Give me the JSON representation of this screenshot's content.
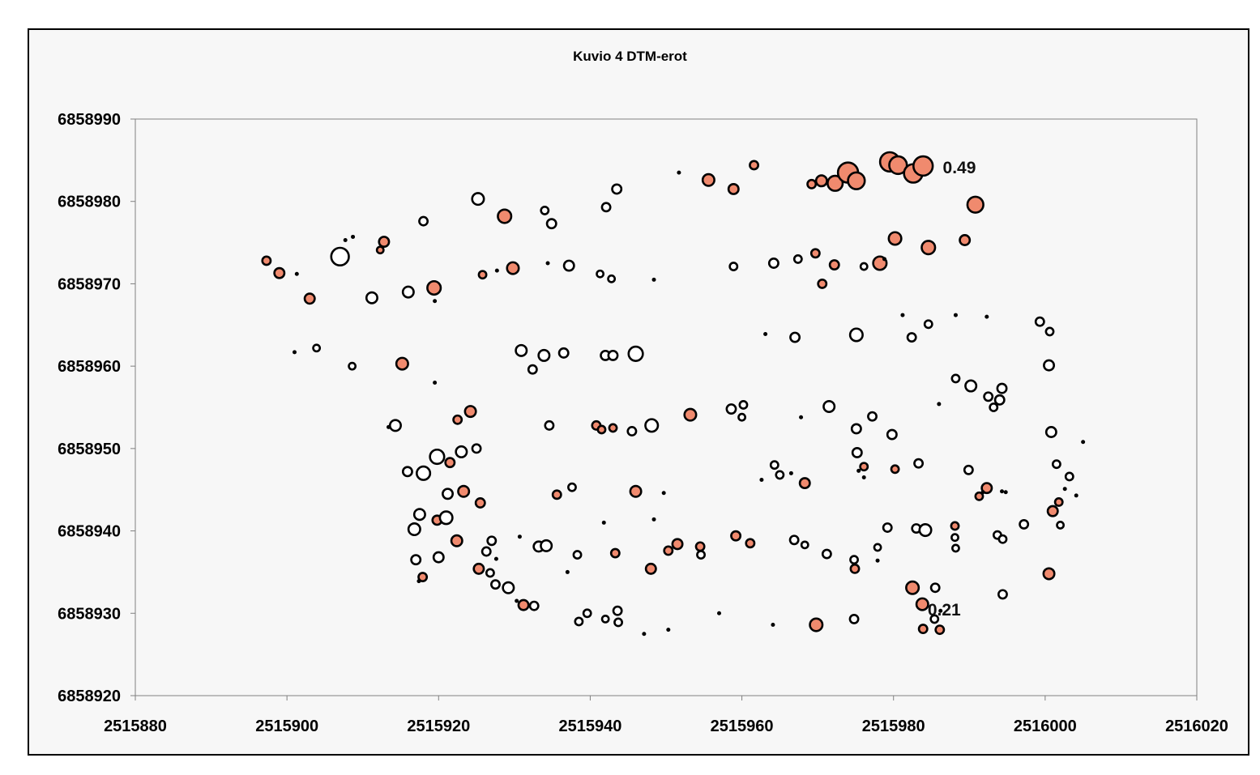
{
  "chart_data": {
    "type": "scatter",
    "title": "Kuvio 4 DTM-erot",
    "xlabel": "",
    "ylabel": "",
    "xlim": [
      2515880,
      2516020
    ],
    "ylim": [
      6858920,
      6858990
    ],
    "x_ticks": [
      "2515880",
      "2515900",
      "2515920",
      "2515940",
      "2515960",
      "2515980",
      "2516000",
      "2516020"
    ],
    "y_ticks": [
      "6858920",
      "6858930",
      "6858940",
      "6858950",
      "6858960",
      "6858970",
      "6858980",
      "6858990"
    ],
    "grid": false,
    "legend": "none",
    "annotations": [
      {
        "text": "0.49",
        "x": 2515986.5,
        "y": 6858984.1
      },
      {
        "text": "0.21",
        "x": 2515984.5,
        "y": 6858930.4
      }
    ],
    "series": [
      {
        "color": "#f08a6e",
        "marker": "filled circle, size ~ positive difference",
        "points": [
          [
            2515897.3,
            6858972.8,
            0.07
          ],
          [
            2515899.0,
            6858971.3,
            0.09
          ],
          [
            2515903.0,
            6858968.2,
            0.09
          ],
          [
            2515912.8,
            6858975.1,
            0.09
          ],
          [
            2515912.3,
            6858974.1,
            0.05
          ],
          [
            2515919.4,
            6858969.5,
            0.13
          ],
          [
            2515915.2,
            6858960.3,
            0.11
          ],
          [
            2515925.8,
            6858971.1,
            0.06
          ],
          [
            2515928.7,
            6858978.2,
            0.13
          ],
          [
            2515929.8,
            6858971.9,
            0.11
          ],
          [
            2515955.6,
            6858982.6,
            0.11
          ],
          [
            2515958.9,
            6858981.5,
            0.09
          ],
          [
            2515961.6,
            6858984.4,
            0.07
          ],
          [
            2515969.2,
            6858982.1,
            0.07
          ],
          [
            2515970.5,
            6858982.5,
            0.1
          ],
          [
            2515972.3,
            6858982.2,
            0.15
          ],
          [
            2515974.0,
            6858983.5,
            0.21
          ],
          [
            2515975.1,
            6858982.5,
            0.17
          ],
          [
            2515979.5,
            6858984.8,
            0.2
          ],
          [
            2515980.6,
            6858984.4,
            0.18
          ],
          [
            2515982.6,
            6858983.4,
            0.19
          ],
          [
            2515983.9,
            6858984.3,
            0.2
          ],
          [
            2515990.8,
            6858979.6,
            0.16
          ],
          [
            2515969.7,
            6858973.7,
            0.07
          ],
          [
            2515972.2,
            6858972.3,
            0.08
          ],
          [
            2515978.2,
            6858972.5,
            0.13
          ],
          [
            2515980.2,
            6858975.5,
            0.12
          ],
          [
            2515984.6,
            6858974.4,
            0.13
          ],
          [
            2515989.4,
            6858975.3,
            0.09
          ],
          [
            2515970.6,
            6858970.0,
            0.07
          ],
          [
            2515924.2,
            6858954.5,
            0.1
          ],
          [
            2515922.5,
            6858953.5,
            0.07
          ],
          [
            2515921.5,
            6858948.3,
            0.08
          ],
          [
            2515923.3,
            6858944.8,
            0.1
          ],
          [
            2515925.5,
            6858943.4,
            0.08
          ],
          [
            2515922.4,
            6858938.8,
            0.1
          ],
          [
            2515925.3,
            6858935.4,
            0.09
          ],
          [
            2515919.8,
            6858941.3,
            0.08
          ],
          [
            2515917.9,
            6858934.4,
            0.07
          ],
          [
            2515940.8,
            6858952.8,
            0.07
          ],
          [
            2515941.5,
            6858952.3,
            0.06
          ],
          [
            2515943.0,
            6858952.5,
            0.06
          ],
          [
            2515953.2,
            6858954.1,
            0.11
          ],
          [
            2515946.0,
            6858944.8,
            0.1
          ],
          [
            2515935.6,
            6858944.4,
            0.07
          ],
          [
            2515931.2,
            6858931.0,
            0.09
          ],
          [
            2515943.3,
            6858937.3,
            0.07
          ],
          [
            2515948.0,
            6858935.4,
            0.09
          ],
          [
            2515950.3,
            6858937.6,
            0.07
          ],
          [
            2515951.5,
            6858938.4,
            0.09
          ],
          [
            2515954.5,
            6858938.1,
            0.07
          ],
          [
            2515959.2,
            6858939.4,
            0.08
          ],
          [
            2515961.1,
            6858938.5,
            0.07
          ],
          [
            2515968.3,
            6858945.8,
            0.09
          ],
          [
            2515974.9,
            6858935.4,
            0.07
          ],
          [
            2515976.1,
            6858947.8,
            0.06
          ],
          [
            2515980.2,
            6858947.5,
            0.06
          ],
          [
            2515969.8,
            6858928.6,
            0.12
          ],
          [
            2515982.5,
            6858933.1,
            0.12
          ],
          [
            2515983.8,
            6858931.1,
            0.11
          ],
          [
            2515983.9,
            6858928.1,
            0.07
          ],
          [
            2515986.1,
            6858928.0,
            0.07
          ],
          [
            2515988.1,
            6858940.6,
            0.06
          ],
          [
            2515991.3,
            6858944.2,
            0.06
          ],
          [
            2515992.3,
            6858945.2,
            0.09
          ],
          [
            2516000.5,
            6858934.8,
            0.1
          ],
          [
            2516001.0,
            6858942.4,
            0.09
          ],
          [
            2516001.8,
            6858943.5,
            0.06
          ]
        ]
      },
      {
        "color": "#ffffff",
        "marker": "hollow circle, size ~ negative difference",
        "points": [
          [
            2515907.0,
            6858973.3,
            0.18
          ],
          [
            2515911.2,
            6858968.3,
            0.1
          ],
          [
            2515916.0,
            6858969.0,
            0.1
          ],
          [
            2515918.0,
            6858977.6,
            0.07
          ],
          [
            2515925.2,
            6858980.3,
            0.11
          ],
          [
            2515934.0,
            6858978.9,
            0.06
          ],
          [
            2515934.9,
            6858977.3,
            0.08
          ],
          [
            2515937.2,
            6858972.2,
            0.09
          ],
          [
            2515942.1,
            6858979.3,
            0.07
          ],
          [
            2515943.5,
            6858981.5,
            0.08
          ],
          [
            2515941.3,
            6858971.2,
            0.05
          ],
          [
            2515942.8,
            6858970.6,
            0.05
          ],
          [
            2515958.9,
            6858972.1,
            0.06
          ],
          [
            2515964.2,
            6858972.5,
            0.08
          ],
          [
            2515967.4,
            6858973.0,
            0.06
          ],
          [
            2515976.1,
            6858972.1,
            0.05
          ],
          [
            2515903.9,
            6858962.2,
            0.05
          ],
          [
            2515908.6,
            6858960.0,
            0.05
          ],
          [
            2515930.9,
            6858961.9,
            0.1
          ],
          [
            2515932.4,
            6858959.6,
            0.07
          ],
          [
            2515933.9,
            6858961.3,
            0.1
          ],
          [
            2515936.5,
            6858961.6,
            0.08
          ],
          [
            2515942.0,
            6858961.3,
            0.08
          ],
          [
            2515943.0,
            6858961.3,
            0.08
          ],
          [
            2515946.0,
            6858961.5,
            0.14
          ],
          [
            2515967.0,
            6858963.5,
            0.08
          ],
          [
            2515975.1,
            6858963.8,
            0.12
          ],
          [
            2515982.4,
            6858963.5,
            0.07
          ],
          [
            2515984.6,
            6858965.1,
            0.06
          ],
          [
            2515999.3,
            6858965.4,
            0.07
          ],
          [
            2516000.6,
            6858964.2,
            0.06
          ],
          [
            2516000.5,
            6858960.1,
            0.09
          ],
          [
            2515934.6,
            6858952.8,
            0.07
          ],
          [
            2515945.5,
            6858952.1,
            0.07
          ],
          [
            2515948.1,
            6858952.8,
            0.12
          ],
          [
            2515958.6,
            6858954.8,
            0.08
          ],
          [
            2515960.2,
            6858955.3,
            0.06
          ],
          [
            2515960.0,
            6858953.8,
            0.05
          ],
          [
            2515971.5,
            6858955.1,
            0.1
          ],
          [
            2515975.1,
            6858952.4,
            0.08
          ],
          [
            2515977.2,
            6858953.9,
            0.07
          ],
          [
            2515979.8,
            6858951.7,
            0.08
          ],
          [
            2515975.2,
            6858949.5,
            0.08
          ],
          [
            2515988.2,
            6858958.5,
            0.06
          ],
          [
            2515990.2,
            6858957.6,
            0.1
          ],
          [
            2515992.5,
            6858956.3,
            0.07
          ],
          [
            2515993.2,
            6858955.0,
            0.06
          ],
          [
            2515994.0,
            6858955.9,
            0.08
          ],
          [
            2515994.3,
            6858957.3,
            0.08
          ],
          [
            2516000.8,
            6858952.0,
            0.09
          ],
          [
            2515937.6,
            6858945.3,
            0.06
          ],
          [
            2515964.3,
            6858948.0,
            0.06
          ],
          [
            2515965.0,
            6858946.8,
            0.06
          ],
          [
            2515983.3,
            6858948.2,
            0.07
          ],
          [
            2515989.9,
            6858947.4,
            0.07
          ],
          [
            2516001.5,
            6858948.1,
            0.06
          ],
          [
            2516003.2,
            6858946.6,
            0.06
          ],
          [
            2515914.3,
            6858952.8,
            0.1
          ],
          [
            2515915.9,
            6858947.2,
            0.08
          ],
          [
            2515918.0,
            6858947.0,
            0.13
          ],
          [
            2515919.8,
            6858949.0,
            0.14
          ],
          [
            2515921.2,
            6858944.5,
            0.09
          ],
          [
            2515917.5,
            6858942.0,
            0.1
          ],
          [
            2515916.8,
            6858940.2,
            0.11
          ],
          [
            2515921.0,
            6858941.6,
            0.12
          ],
          [
            2515923.0,
            6858949.6,
            0.1
          ],
          [
            2515917.0,
            6858936.5,
            0.08
          ],
          [
            2515920.0,
            6858936.8,
            0.09
          ],
          [
            2515925.0,
            6858950.0,
            0.07
          ],
          [
            2515926.3,
            6858937.5,
            0.07
          ],
          [
            2515927.0,
            6858938.8,
            0.07
          ],
          [
            2515926.8,
            6858934.9,
            0.06
          ],
          [
            2515927.5,
            6858933.5,
            0.07
          ],
          [
            2515929.2,
            6858933.1,
            0.1
          ],
          [
            2515933.2,
            6858938.1,
            0.09
          ],
          [
            2515934.2,
            6858938.2,
            0.1
          ],
          [
            2515938.3,
            6858937.1,
            0.06
          ],
          [
            2515932.6,
            6858930.9,
            0.07
          ],
          [
            2515938.5,
            6858929.0,
            0.06
          ],
          [
            2515939.6,
            6858930.0,
            0.06
          ],
          [
            2515942.0,
            6858929.3,
            0.05
          ],
          [
            2515943.6,
            6858930.3,
            0.07
          ],
          [
            2515943.7,
            6858928.9,
            0.06
          ],
          [
            2515954.6,
            6858937.1,
            0.06
          ],
          [
            2515966.9,
            6858938.9,
            0.07
          ],
          [
            2515968.3,
            6858938.3,
            0.05
          ],
          [
            2515971.2,
            6858937.2,
            0.07
          ],
          [
            2515974.8,
            6858936.5,
            0.06
          ],
          [
            2515974.8,
            6858929.3,
            0.07
          ],
          [
            2515977.9,
            6858938.0,
            0.05
          ],
          [
            2515979.2,
            6858940.4,
            0.07
          ],
          [
            2515983.0,
            6858940.3,
            0.07
          ],
          [
            2515984.2,
            6858940.1,
            0.11
          ],
          [
            2515985.5,
            6858933.1,
            0.07
          ],
          [
            2515985.4,
            6858929.3,
            0.06
          ],
          [
            2515988.1,
            6858939.2,
            0.05
          ],
          [
            2515988.2,
            6858937.9,
            0.05
          ],
          [
            2515993.7,
            6858939.5,
            0.06
          ],
          [
            2515994.4,
            6858939.0,
            0.06
          ],
          [
            2515994.4,
            6858932.3,
            0.07
          ],
          [
            2515997.2,
            6858940.8,
            0.07
          ],
          [
            2516002.0,
            6858940.7,
            0.05
          ]
        ]
      },
      {
        "color": "#000000",
        "marker": "dot, near-zero difference",
        "points": [
          [
            2515901.3,
            6858971.2,
            0.02
          ],
          [
            2515907.7,
            6858975.3,
            0.02
          ],
          [
            2515908.7,
            6858975.7,
            0.02
          ],
          [
            2515919.5,
            6858967.9,
            0.02
          ],
          [
            2515919.5,
            6858958.0,
            0.02
          ],
          [
            2515901.0,
            6858961.7,
            0.01
          ],
          [
            2515927.7,
            6858971.6,
            0.01
          ],
          [
            2515934.4,
            6858972.5,
            0.01
          ],
          [
            2515948.4,
            6858970.5,
            0.01
          ],
          [
            2515951.7,
            6858983.5,
            0.01
          ],
          [
            2515963.1,
            6858963.9,
            0.01
          ],
          [
            2515967.8,
            6858953.8,
            0.01
          ],
          [
            2515978.8,
            6858973.0,
            0.01
          ],
          [
            2515981.2,
            6858966.2,
            0.02
          ],
          [
            2515988.2,
            6858966.2,
            0.02
          ],
          [
            2515992.3,
            6858966.0,
            0.02
          ],
          [
            2515986.0,
            6858955.4,
            0.01
          ],
          [
            2515962.6,
            6858946.2,
            0.02
          ],
          [
            2515966.5,
            6858947.0,
            0.02
          ],
          [
            2515949.7,
            6858944.6,
            0.02
          ],
          [
            2515941.8,
            6858941.0,
            0.02
          ],
          [
            2515930.7,
            6858939.3,
            0.02
          ],
          [
            2515937.0,
            6858935.0,
            0.02
          ],
          [
            2515930.3,
            6858931.5,
            0.01
          ],
          [
            2515948.4,
            6858941.4,
            0.01
          ],
          [
            2515957.0,
            6858930.0,
            0.01
          ],
          [
            2515950.3,
            6858928.0,
            0.01
          ],
          [
            2515947.1,
            6858927.5,
            0.02
          ],
          [
            2515964.1,
            6858928.6,
            0.01
          ],
          [
            2515991.8,
            6858944.7,
            0.02
          ],
          [
            2515994.3,
            6858944.8,
            0.02
          ],
          [
            2516002.6,
            6858945.1,
            0.02
          ],
          [
            2516004.1,
            6858944.3,
            0.02
          ],
          [
            2516005.0,
            6858950.8,
            0.02
          ],
          [
            2515994.8,
            6858944.7,
            0.02
          ],
          [
            2515986.2,
            6858930.3,
            0.01
          ],
          [
            2515975.4,
            6858947.3,
            0.02
          ],
          [
            2515976.1,
            6858946.5,
            0.01
          ],
          [
            2515977.9,
            6858936.4,
            0.01
          ],
          [
            2515913.4,
            6858952.6,
            0.02
          ],
          [
            2515917.4,
            6858933.9,
            0.02
          ],
          [
            2515927.6,
            6858936.6,
            0.02
          ]
        ]
      }
    ]
  }
}
